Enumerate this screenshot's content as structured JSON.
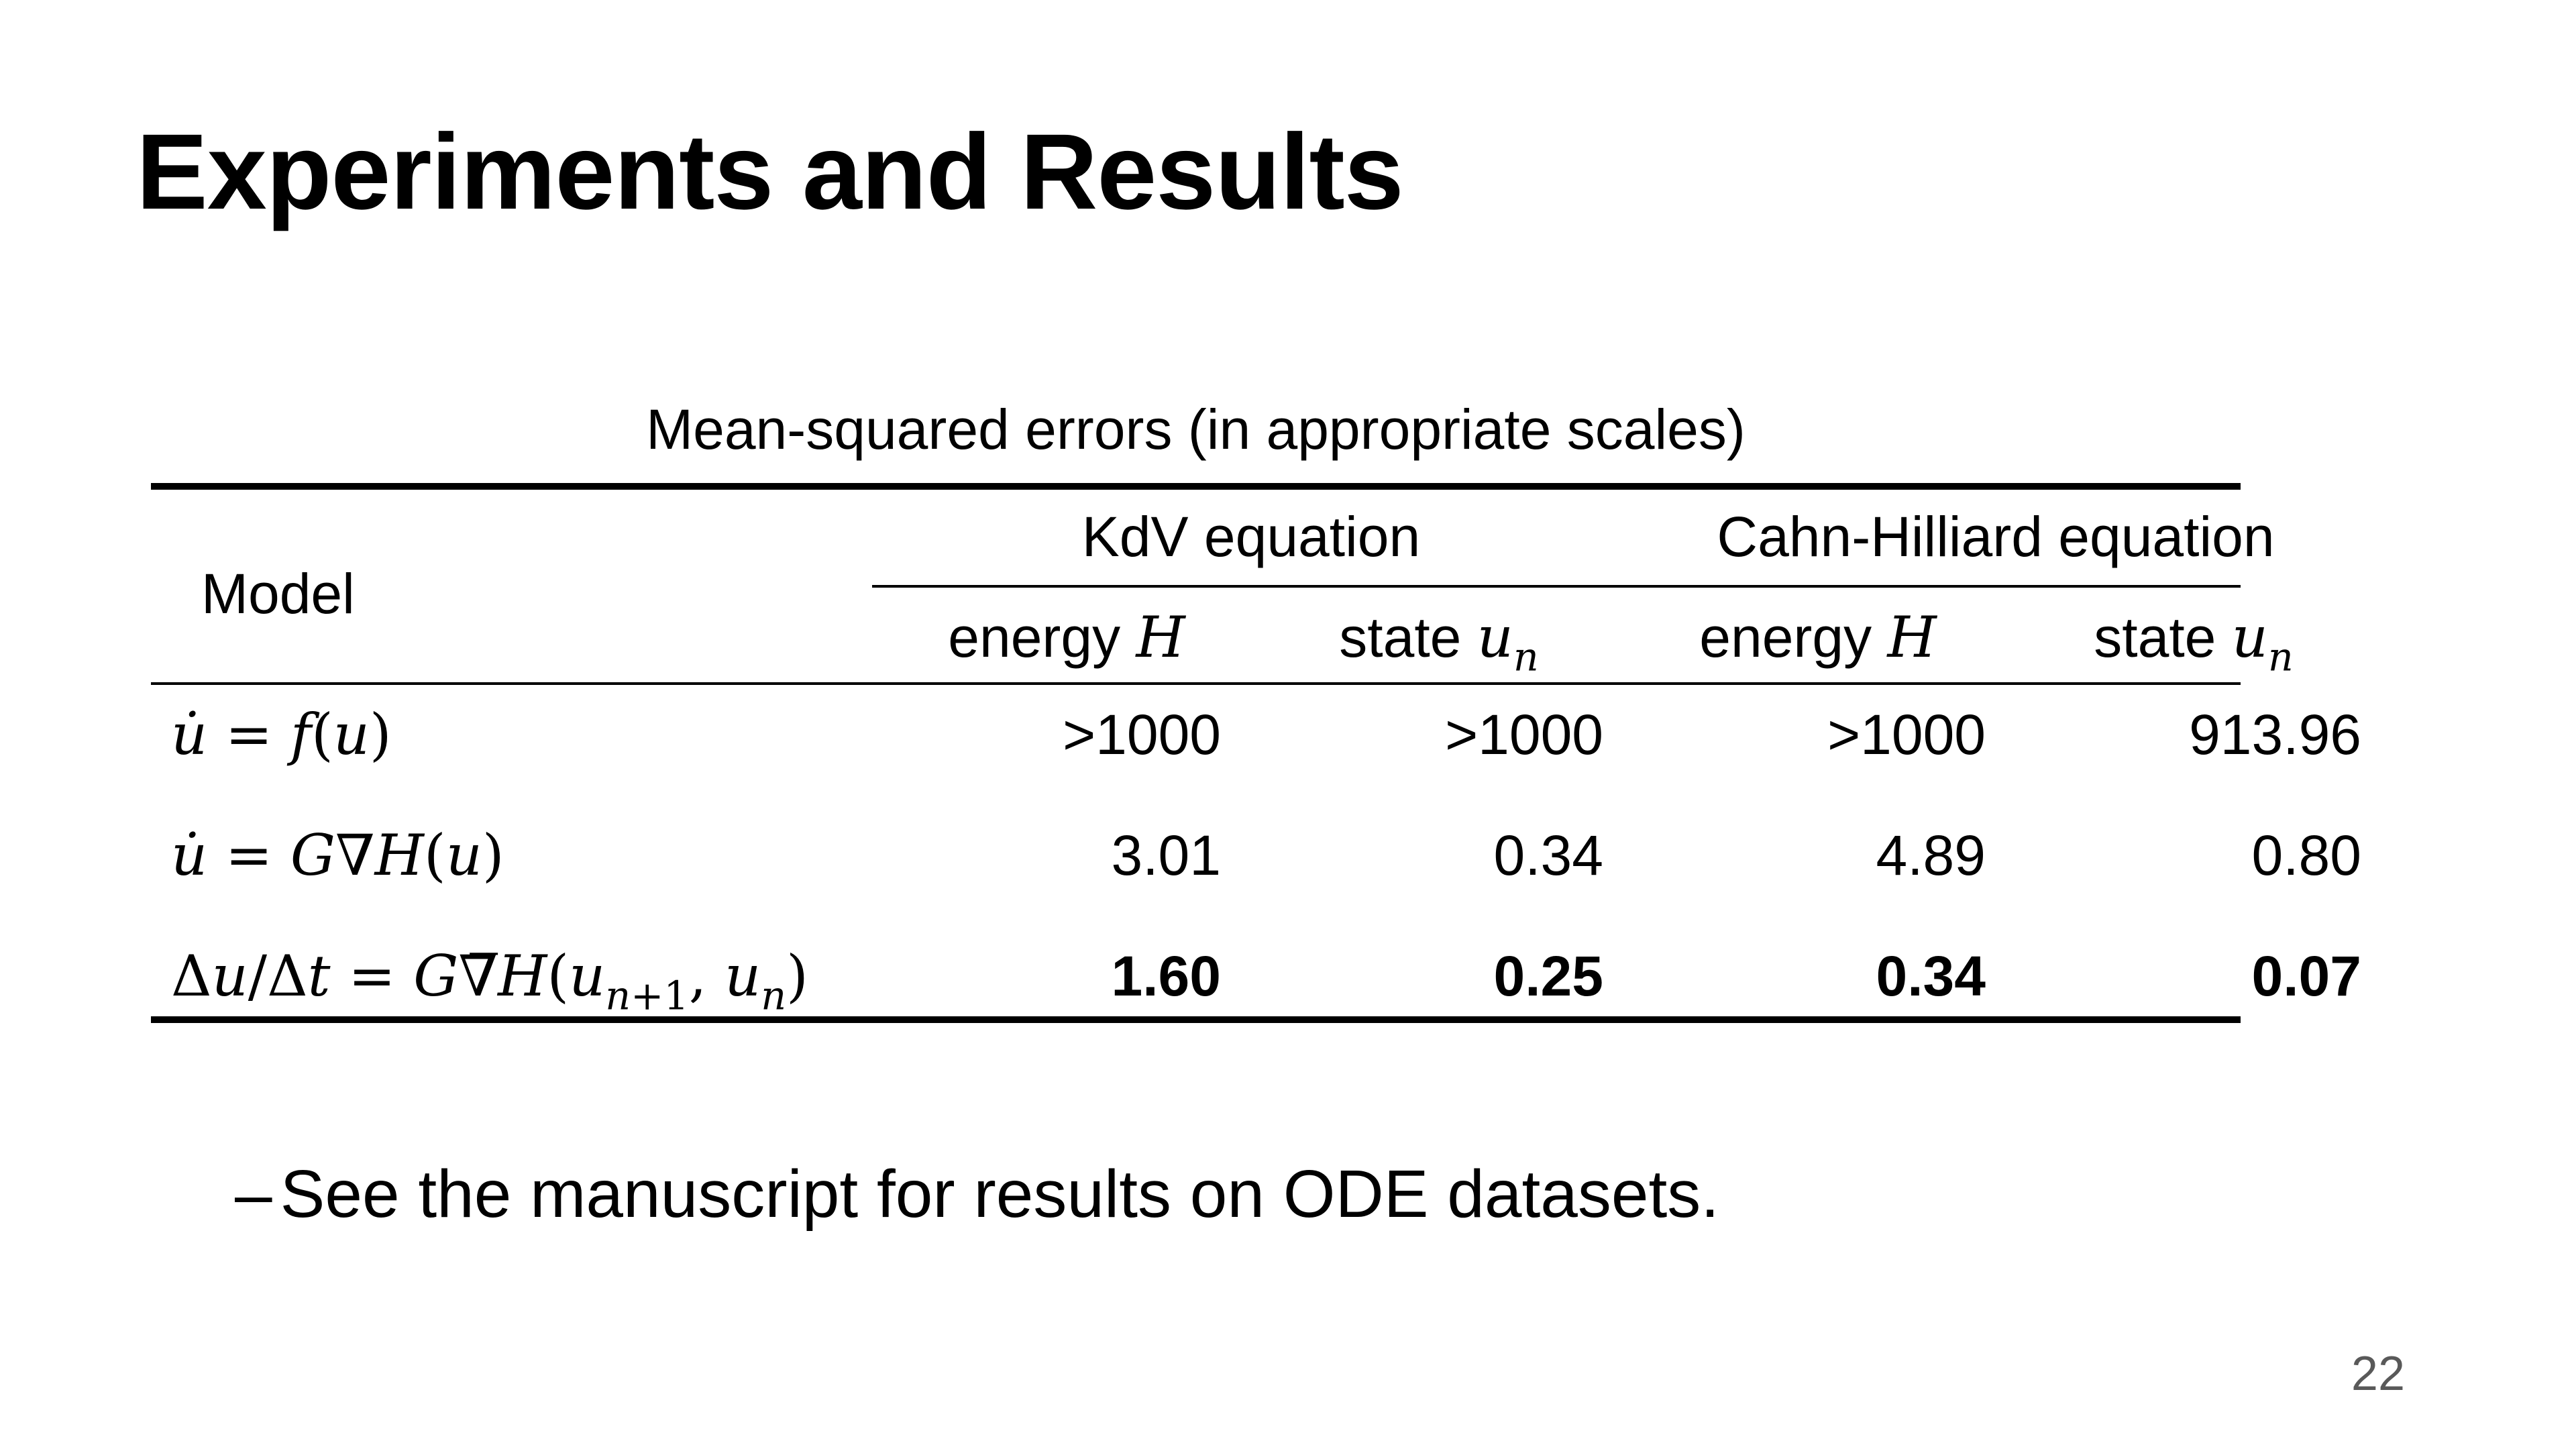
{
  "slide": {
    "title": "Experiments and Results",
    "page_number": "22"
  },
  "table": {
    "caption": "Mean-squared errors (in appropriate scales)",
    "header": {
      "model": "Model",
      "kdv": "KdV equation",
      "cahn_hilliard": "Cahn-Hilliard equation",
      "energy_label": "energy",
      "energy_symbol": "H",
      "state_label": "state",
      "state_symbol": "u",
      "state_subscript": "n"
    },
    "rows": [
      {
        "model": "u̇ = f(u)",
        "values": [
          ">1000",
          ">1000",
          ">1000",
          "913.96"
        ],
        "bold": false
      },
      {
        "model": "u̇ = G∇H(u)",
        "values": [
          "3.01",
          "0.34",
          "4.89",
          "0.80"
        ],
        "bold": false
      },
      {
        "model": "Δu/Δt = G∇̅H(un+1, un)",
        "values": [
          "1.60",
          "0.25",
          "0.34",
          "0.07"
        ],
        "bold": true
      }
    ]
  },
  "bullets": [
    {
      "marker": "–",
      "text": "See the manuscript for results on ODE datasets."
    }
  ]
}
